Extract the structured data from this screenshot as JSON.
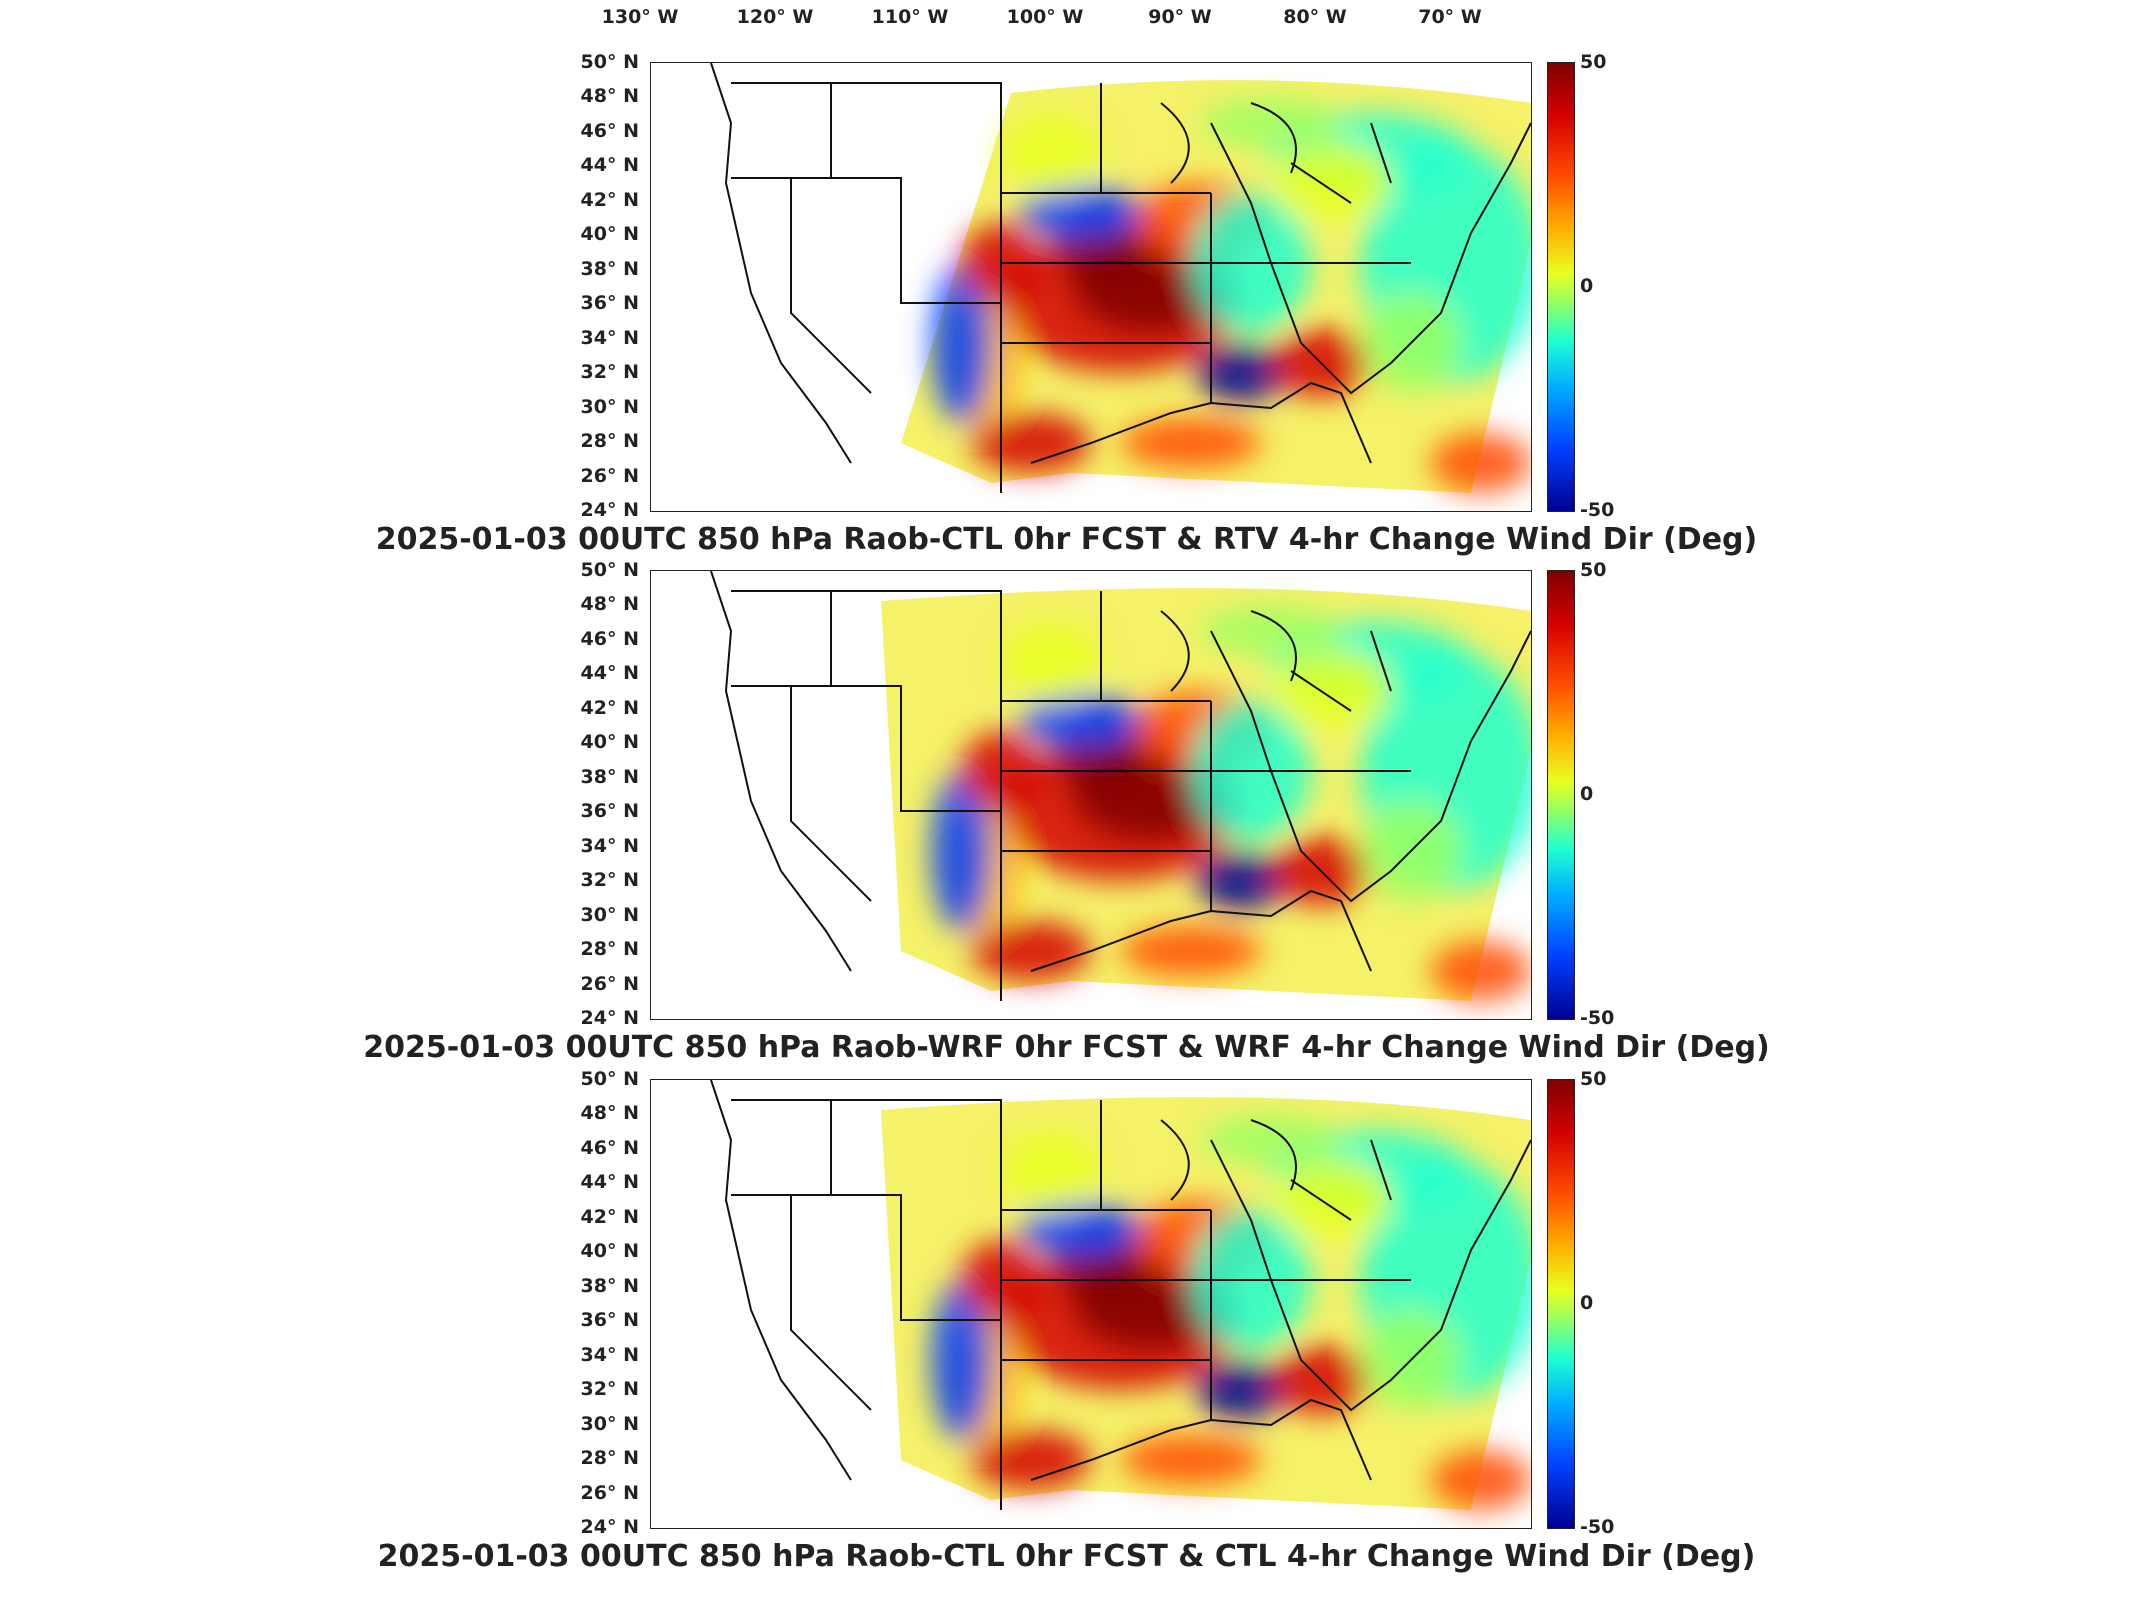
{
  "longitude_labels": [
    "130° W",
    "120° W",
    "110° W",
    "100° W",
    "90° W",
    "80° W",
    "70° W"
  ],
  "latitude_labels": [
    "50° N",
    "48° N",
    "46° N",
    "44° N",
    "42° N",
    "40° N",
    "38° N",
    "36° N",
    "34° N",
    "32° N",
    "30° N",
    "28° N",
    "26° N",
    "24° N"
  ],
  "colorbar": {
    "max": "50",
    "mid": "0",
    "min": "-50",
    "colors": [
      "#800000",
      "#d40000",
      "#ff4a00",
      "#ffb000",
      "#e8ff20",
      "#9cff60",
      "#20ffd0",
      "#00b0ff",
      "#0040ff",
      "#000090"
    ]
  },
  "panels": [
    {
      "title": "2025-01-03 00UTC 850 hPa Raob-CTL 0hr FCST & RTV 4-hr Change Wind Dir (Deg)"
    },
    {
      "title": "2025-01-03 00UTC 850 hPa Raob-WRF 0hr FCST & WRF 4-hr Change Wind Dir (Deg)"
    },
    {
      "title": "2025-01-03 00UTC 850 hPa Raob-CTL 0hr FCST & CTL 4-hr Change Wind Dir (Deg)"
    }
  ]
}
